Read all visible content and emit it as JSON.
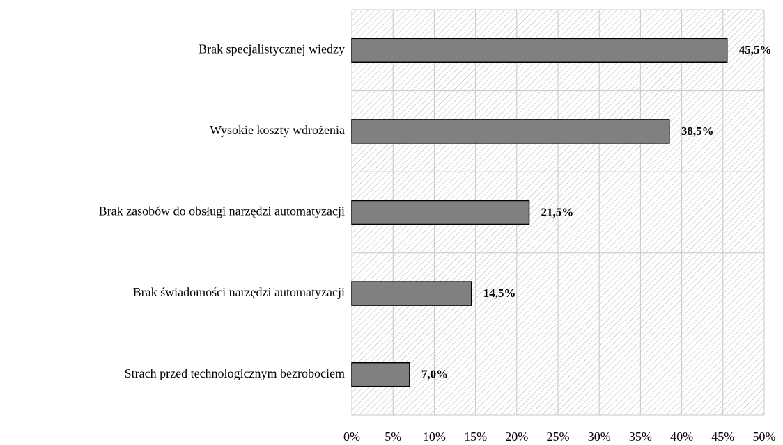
{
  "chart_data": {
    "type": "barh",
    "categories": [
      "Brak specjalistycznej wiedzy",
      "Wysokie koszty wdrożenia",
      "Brak zasobów do obsługi narzędzi automatyzacji",
      "Brak świadomości narzędzi automatyzacji",
      "Strach przed technologicznym bezrobociem"
    ],
    "values": [
      45.5,
      38.5,
      21.5,
      14.5,
      7.0
    ],
    "value_labels": [
      "45,5%",
      "38,5%",
      "21,5%",
      "14,5%",
      "7,0%"
    ],
    "color": "#808080",
    "xlim": [
      0,
      50
    ],
    "xticks": [
      {
        "value": 0,
        "label": "0%"
      },
      {
        "value": 5,
        "label": "5%"
      },
      {
        "value": 10,
        "label": "10%"
      },
      {
        "value": 15,
        "label": "15%"
      },
      {
        "value": 20,
        "label": "20%"
      },
      {
        "value": 25,
        "label": "25%"
      },
      {
        "value": 30,
        "label": "30%"
      },
      {
        "value": 35,
        "label": "35%"
      },
      {
        "value": 40,
        "label": "40%"
      },
      {
        "value": 45,
        "label": "45%"
      },
      {
        "value": 50,
        "label": "50%"
      }
    ],
    "grid": true
  }
}
